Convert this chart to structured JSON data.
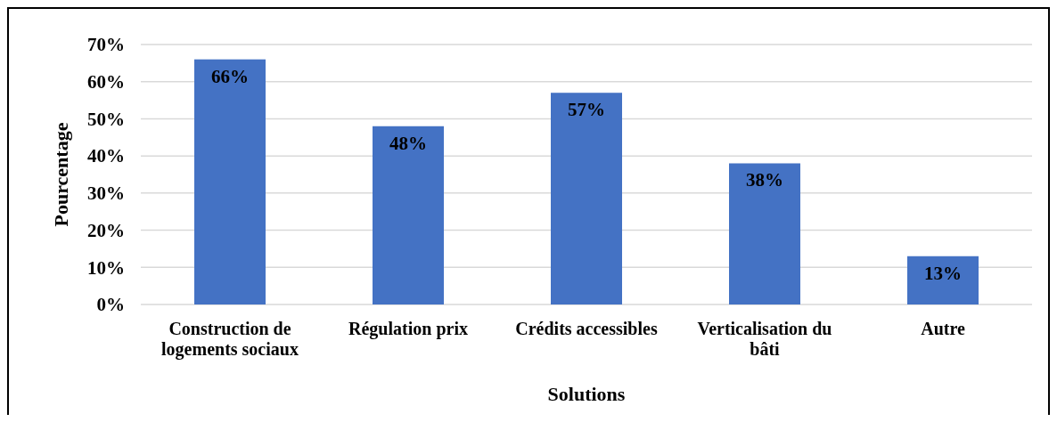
{
  "chart_data": {
    "type": "bar",
    "xlabel": "Solutions",
    "ylabel": "Pourcentage",
    "categories": [
      "Construction de logements sociaux",
      "Régulation prix",
      "Crédits accessibles",
      "Verticalisation du bâti",
      "Autre"
    ],
    "values": [
      66,
      48,
      57,
      38,
      13
    ],
    "value_labels": [
      "66%",
      "48%",
      "57%",
      "38%",
      "13%"
    ],
    "color": "#4472c4",
    "ylim": [
      0,
      70
    ],
    "yticks": [
      {
        "value": 0,
        "label": "0%"
      },
      {
        "value": 10,
        "label": "10%"
      },
      {
        "value": 20,
        "label": "20%"
      },
      {
        "value": 30,
        "label": "30%"
      },
      {
        "value": 40,
        "label": "40%"
      },
      {
        "value": 50,
        "label": "50%"
      },
      {
        "value": 60,
        "label": "60%"
      },
      {
        "value": 70,
        "label": "70%"
      }
    ],
    "grid": "y"
  }
}
